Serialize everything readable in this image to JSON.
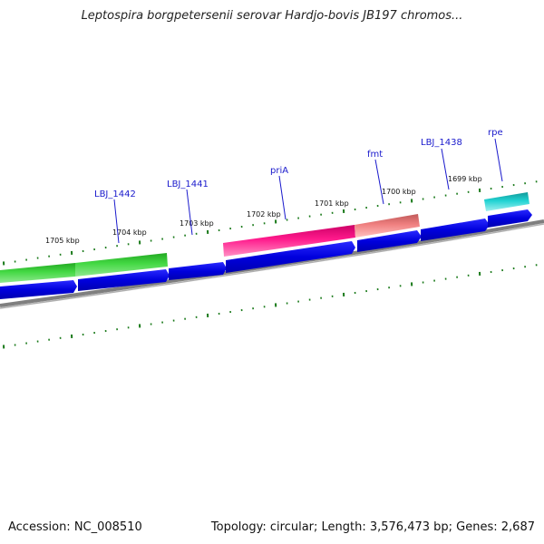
{
  "title": "Leptospira borgpetersenii serovar Hardjo-bovis JB197 chromos...",
  "footer": {
    "accession": "Accession: NC_008510",
    "summary": "Topology: circular; Length: 3,576,473 bp; Genes: 2,687"
  },
  "scale_labels": [
    "1699 kbp",
    "1700 kbp",
    "1701 kbp",
    "1702 kbp",
    "1703 kbp",
    "1704 kbp",
    "1705 kbp"
  ],
  "gene_labels": [
    "rpe",
    "LBJ_1438",
    "fmt",
    "priA",
    "LBJ_1441",
    "LBJ_1442"
  ],
  "colors": {
    "cds": "#0000e0",
    "gene_green": "#33cc33",
    "gene_magenta": "#ff1493",
    "gene_salmon": "#f08080",
    "gene_cyan": "#22d3d3",
    "backbone": "#808080",
    "ticks": "#1a7a1a",
    "label_blue": "#1a1acc"
  }
}
